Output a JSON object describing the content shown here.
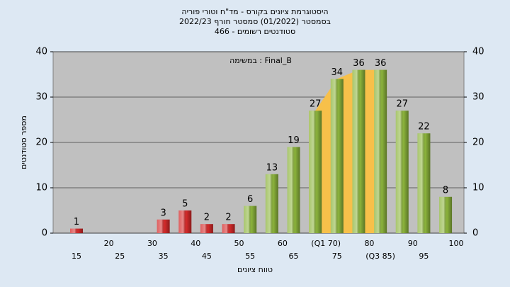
{
  "chart_data": {
    "type": "bar",
    "title": [
      "היסטוגרמת ציונים בקורס - מד\"ח וטורי פוריה",
      "בסמסטר  (01/2022)  סמסטר חורף 2022/23",
      "סטודנטים רשומים - 466"
    ],
    "annotation": "במשימה : Final_B",
    "x_label": "טווח ציונים",
    "y_label": "מספר סטודנטים",
    "categories": [
      "15",
      "20",
      "25",
      "30",
      "35",
      "40",
      "45",
      "50",
      "55",
      "60",
      "65",
      "(Q1 70)",
      "75",
      "80",
      "(Q3 85)",
      "90",
      "95",
      "100"
    ],
    "values": [
      1,
      null,
      null,
      null,
      3,
      5,
      2,
      2,
      6,
      13,
      19,
      27,
      34,
      36,
      36,
      27,
      22,
      8
    ],
    "colors": [
      "#d42a2a",
      "#d42a2a",
      "#d42a2a",
      "#d42a2a",
      "#d42a2a",
      "#d42a2a",
      "#d42a2a",
      "#d42a2a",
      "#8cb43c",
      "#8cb43c",
      "#8cb43c",
      "#8cb43c",
      "#8cb43c",
      "#8cb43c",
      "#8cb43c",
      "#8cb43c",
      "#8cb43c",
      "#8cb43c"
    ],
    "highlight_color": "#f7c04a",
    "ylim": [
      0,
      40
    ],
    "yticks": [
      0,
      10,
      20,
      30,
      40
    ],
    "grid": true
  }
}
